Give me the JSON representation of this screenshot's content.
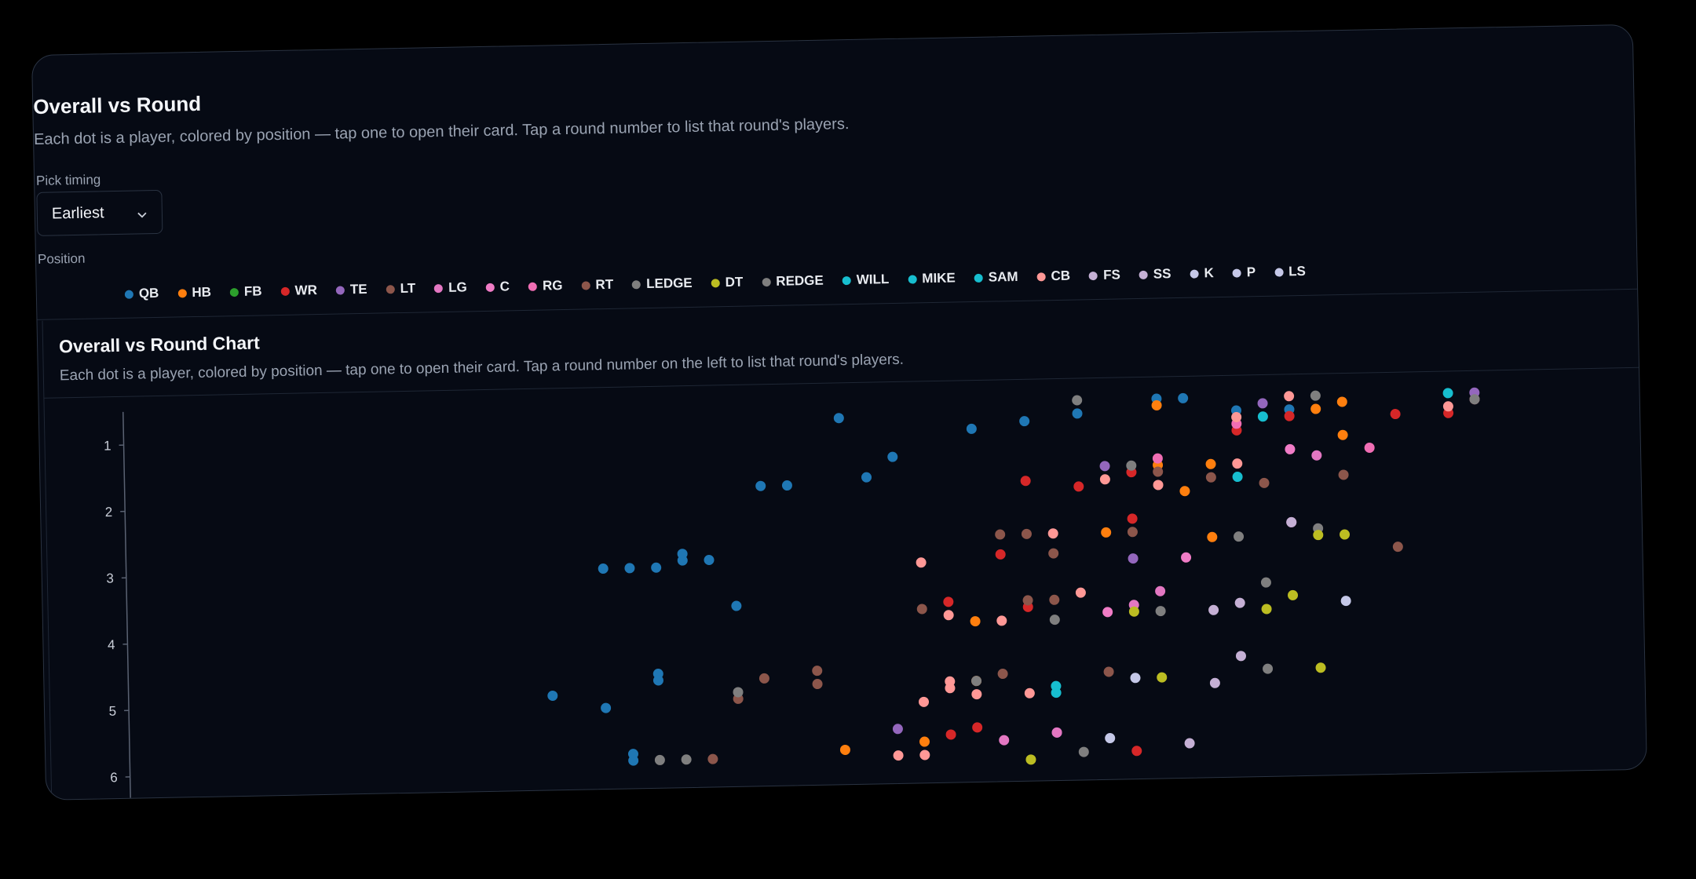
{
  "header": {
    "title": "Overall vs Round",
    "subtitle": "Each dot is a player, colored by position — tap one to open their card. Tap a round number to list that round's players."
  },
  "filters": {
    "pick_timing_label": "Pick timing",
    "pick_timing_value": "Earliest",
    "position_label": "Position"
  },
  "legend": [
    {
      "label": "QB",
      "color": "#1f77b4"
    },
    {
      "label": "HB",
      "color": "#ff7f0e"
    },
    {
      "label": "FB",
      "color": "#2ca02c"
    },
    {
      "label": "WR",
      "color": "#d62728"
    },
    {
      "label": "TE",
      "color": "#9467bd"
    },
    {
      "label": "LT",
      "color": "#8c564b"
    },
    {
      "label": "LG",
      "color": "#e377c2"
    },
    {
      "label": "C",
      "color": "#f07cc6"
    },
    {
      "label": "RG",
      "color": "#f06eb4"
    },
    {
      "label": "RT",
      "color": "#8c564b"
    },
    {
      "label": "LEDGE",
      "color": "#7f7f7f"
    },
    {
      "label": "DT",
      "color": "#bcbd22"
    },
    {
      "label": "REDGE",
      "color": "#7f7f7f"
    },
    {
      "label": "WILL",
      "color": "#17becf"
    },
    {
      "label": "MIKE",
      "color": "#17becf"
    },
    {
      "label": "SAM",
      "color": "#17becf"
    },
    {
      "label": "CB",
      "color": "#ff9896"
    },
    {
      "label": "FS",
      "color": "#c5b0d5"
    },
    {
      "label": "SS",
      "color": "#c5b0d5"
    },
    {
      "label": "K",
      "color": "#c5c8e8"
    },
    {
      "label": "P",
      "color": "#c5c8e8"
    },
    {
      "label": "LS",
      "color": "#c5c8e8"
    }
  ],
  "chart_card": {
    "title": "Overall vs Round Chart",
    "subtitle": "Each dot is a player, colored by position — tap one to open their card. Tap a round number on the left to list that round's players."
  },
  "chart_data": {
    "type": "scatter",
    "xlabel": "",
    "ylabel": "",
    "y_ticks": [
      1,
      2,
      3,
      4,
      5,
      6
    ],
    "x_range": [
      40,
      96
    ],
    "y_range": [
      0.5,
      6.2
    ],
    "y_inverted": true,
    "grid": false,
    "legend_placement": "top",
    "series": [
      {
        "position": "QB",
        "x": 76,
        "y": 0.8
      },
      {
        "position": "QB",
        "x": 74,
        "y": 0.9
      },
      {
        "position": "QB",
        "x": 72,
        "y": 1.0
      },
      {
        "position": "QB",
        "x": 67,
        "y": 0.8
      },
      {
        "position": "QB",
        "x": 68,
        "y": 1.7
      },
      {
        "position": "QB",
        "x": 69,
        "y": 1.4
      },
      {
        "position": "QB",
        "x": 65,
        "y": 1.8
      },
      {
        "position": "QB",
        "x": 64,
        "y": 1.8
      },
      {
        "position": "QB",
        "x": 62,
        "y": 2.9
      },
      {
        "position": "QB",
        "x": 61,
        "y": 2.8
      },
      {
        "position": "QB",
        "x": 61,
        "y": 2.9
      },
      {
        "position": "QB",
        "x": 60,
        "y": 3.0
      },
      {
        "position": "QB",
        "x": 59,
        "y": 3.0
      },
      {
        "position": "QB",
        "x": 58,
        "y": 3.0
      },
      {
        "position": "QB",
        "x": 63,
        "y": 3.6
      },
      {
        "position": "QB",
        "x": 60,
        "y": 4.6
      },
      {
        "position": "QB",
        "x": 60,
        "y": 4.7
      },
      {
        "position": "QB",
        "x": 56,
        "y": 4.9
      },
      {
        "position": "QB",
        "x": 58,
        "y": 5.1
      },
      {
        "position": "QB",
        "x": 59,
        "y": 5.8
      },
      {
        "position": "QB",
        "x": 59,
        "y": 5.9
      },
      {
        "position": "QB",
        "x": 79,
        "y": 0.6
      },
      {
        "position": "QB",
        "x": 80,
        "y": 0.6
      },
      {
        "position": "QB",
        "x": 82,
        "y": 0.8
      },
      {
        "position": "QB",
        "x": 84,
        "y": 0.8
      },
      {
        "position": "QB",
        "x": 91,
        "y": 0.7
      },
      {
        "position": "HB",
        "x": 79,
        "y": 0.7
      },
      {
        "position": "HB",
        "x": 85,
        "y": 0.8
      },
      {
        "position": "HB",
        "x": 86,
        "y": 0.7
      },
      {
        "position": "HB",
        "x": 79,
        "y": 1.6
      },
      {
        "position": "HB",
        "x": 81,
        "y": 1.6
      },
      {
        "position": "HB",
        "x": 86,
        "y": 1.2
      },
      {
        "position": "HB",
        "x": 80,
        "y": 2.0
      },
      {
        "position": "HB",
        "x": 77,
        "y": 2.6
      },
      {
        "position": "HB",
        "x": 81,
        "y": 2.7
      },
      {
        "position": "HB",
        "x": 72,
        "y": 3.9
      },
      {
        "position": "HB",
        "x": 72,
        "y": 4.8
      },
      {
        "position": "HB",
        "x": 70,
        "y": 5.7
      },
      {
        "position": "HB",
        "x": 67,
        "y": 5.8
      },
      {
        "position": "WR",
        "x": 74,
        "y": 1.8
      },
      {
        "position": "WR",
        "x": 76,
        "y": 1.9
      },
      {
        "position": "WR",
        "x": 78,
        "y": 1.7
      },
      {
        "position": "WR",
        "x": 82,
        "y": 1.1
      },
      {
        "position": "WR",
        "x": 84,
        "y": 0.9
      },
      {
        "position": "WR",
        "x": 88,
        "y": 0.9
      },
      {
        "position": "WR",
        "x": 90,
        "y": 0.9
      },
      {
        "position": "WR",
        "x": 91,
        "y": 0.7
      },
      {
        "position": "WR",
        "x": 73,
        "y": 2.9
      },
      {
        "position": "WR",
        "x": 78,
        "y": 2.4
      },
      {
        "position": "WR",
        "x": 71,
        "y": 3.6
      },
      {
        "position": "WR",
        "x": 74,
        "y": 3.7
      },
      {
        "position": "WR",
        "x": 72,
        "y": 5.5
      },
      {
        "position": "WR",
        "x": 71,
        "y": 5.6
      },
      {
        "position": "WR",
        "x": 78,
        "y": 5.9
      },
      {
        "position": "TE",
        "x": 77,
        "y": 1.6
      },
      {
        "position": "TE",
        "x": 83,
        "y": 0.7
      },
      {
        "position": "TE",
        "x": 91,
        "y": 0.6
      },
      {
        "position": "TE",
        "x": 78,
        "y": 3.0
      },
      {
        "position": "TE",
        "x": 69,
        "y": 5.5
      },
      {
        "position": "TE",
        "x": 75,
        "y": 5.6
      },
      {
        "position": "LT",
        "x": 79,
        "y": 1.7
      },
      {
        "position": "LT",
        "x": 81,
        "y": 1.8
      },
      {
        "position": "LT",
        "x": 83,
        "y": 1.9
      },
      {
        "position": "LT",
        "x": 86,
        "y": 1.8
      },
      {
        "position": "LT",
        "x": 73,
        "y": 2.6
      },
      {
        "position": "LT",
        "x": 74,
        "y": 2.6
      },
      {
        "position": "LT",
        "x": 75,
        "y": 2.9
      },
      {
        "position": "LT",
        "x": 78,
        "y": 2.6
      },
      {
        "position": "LT",
        "x": 88,
        "y": 2.9
      },
      {
        "position": "LT",
        "x": 70,
        "y": 3.7
      },
      {
        "position": "LT",
        "x": 74,
        "y": 3.6
      },
      {
        "position": "LT",
        "x": 75,
        "y": 3.6
      },
      {
        "position": "LT",
        "x": 66,
        "y": 4.6
      },
      {
        "position": "LT",
        "x": 66,
        "y": 4.8
      },
      {
        "position": "LT",
        "x": 64,
        "y": 4.7
      },
      {
        "position": "LT",
        "x": 63,
        "y": 5.0
      },
      {
        "position": "LT",
        "x": 73,
        "y": 4.7
      },
      {
        "position": "LT",
        "x": 77,
        "y": 4.7
      },
      {
        "position": "LT",
        "x": 62,
        "y": 5.9
      },
      {
        "position": "LG",
        "x": 85,
        "y": 1.5
      },
      {
        "position": "LG",
        "x": 84,
        "y": 2.5
      },
      {
        "position": "LG",
        "x": 79,
        "y": 3.5
      },
      {
        "position": "LG",
        "x": 78,
        "y": 3.7
      },
      {
        "position": "LG",
        "x": 75,
        "y": 5.6
      },
      {
        "position": "LG",
        "x": 73,
        "y": 5.7
      },
      {
        "position": "C",
        "x": 77,
        "y": 3.8
      },
      {
        "position": "C",
        "x": 80,
        "y": 3.0
      },
      {
        "position": "C",
        "x": 84,
        "y": 1.4
      },
      {
        "position": "RG",
        "x": 87,
        "y": 1.4
      },
      {
        "position": "RG",
        "x": 82,
        "y": 1.0
      },
      {
        "position": "RG",
        "x": 79,
        "y": 1.5
      },
      {
        "position": "LEDGE",
        "x": 76,
        "y": 0.6
      },
      {
        "position": "LEDGE",
        "x": 78,
        "y": 1.6
      },
      {
        "position": "LEDGE",
        "x": 85,
        "y": 0.6
      },
      {
        "position": "LEDGE",
        "x": 91,
        "y": 0.7
      },
      {
        "position": "LEDGE",
        "x": 85,
        "y": 2.6
      },
      {
        "position": "LEDGE",
        "x": 82,
        "y": 2.7
      },
      {
        "position": "LEDGE",
        "x": 83,
        "y": 3.4
      },
      {
        "position": "LEDGE",
        "x": 75,
        "y": 3.9
      },
      {
        "position": "LEDGE",
        "x": 79,
        "y": 3.8
      },
      {
        "position": "LEDGE",
        "x": 72,
        "y": 4.8
      },
      {
        "position": "LEDGE",
        "x": 63,
        "y": 4.9
      },
      {
        "position": "LEDGE",
        "x": 83,
        "y": 4.7
      },
      {
        "position": "LEDGE",
        "x": 60,
        "y": 5.9
      },
      {
        "position": "LEDGE",
        "x": 61,
        "y": 5.9
      },
      {
        "position": "LEDGE",
        "x": 76,
        "y": 5.9
      },
      {
        "position": "DT",
        "x": 85,
        "y": 2.7
      },
      {
        "position": "DT",
        "x": 86,
        "y": 2.7
      },
      {
        "position": "DT",
        "x": 84,
        "y": 3.6
      },
      {
        "position": "DT",
        "x": 83,
        "y": 3.8
      },
      {
        "position": "DT",
        "x": 78,
        "y": 3.8
      },
      {
        "position": "DT",
        "x": 85,
        "y": 4.7
      },
      {
        "position": "DT",
        "x": 79,
        "y": 4.8
      },
      {
        "position": "DT",
        "x": 74,
        "y": 6.0
      },
      {
        "position": "WILL",
        "x": 90,
        "y": 0.6
      },
      {
        "position": "MIKE",
        "x": 83,
        "y": 0.9
      },
      {
        "position": "SAM",
        "x": 82,
        "y": 1.8
      },
      {
        "position": "SAM",
        "x": 75,
        "y": 4.9
      },
      {
        "position": "SAM",
        "x": 75,
        "y": 5.0
      },
      {
        "position": "CB",
        "x": 84,
        "y": 0.6
      },
      {
        "position": "CB",
        "x": 90,
        "y": 0.8
      },
      {
        "position": "CB",
        "x": 82,
        "y": 0.9
      },
      {
        "position": "CB",
        "x": 77,
        "y": 1.8
      },
      {
        "position": "CB",
        "x": 79,
        "y": 1.9
      },
      {
        "position": "CB",
        "x": 82,
        "y": 1.6
      },
      {
        "position": "CB",
        "x": 75,
        "y": 2.6
      },
      {
        "position": "CB",
        "x": 70,
        "y": 3.0
      },
      {
        "position": "CB",
        "x": 73,
        "y": 3.9
      },
      {
        "position": "CB",
        "x": 71,
        "y": 3.8
      },
      {
        "position": "CB",
        "x": 76,
        "y": 3.5
      },
      {
        "position": "CB",
        "x": 71,
        "y": 4.8
      },
      {
        "position": "CB",
        "x": 71,
        "y": 4.9
      },
      {
        "position": "CB",
        "x": 70,
        "y": 5.1
      },
      {
        "position": "CB",
        "x": 72,
        "y": 5.0
      },
      {
        "position": "CB",
        "x": 74,
        "y": 5.0
      },
      {
        "position": "CB",
        "x": 70,
        "y": 5.9
      },
      {
        "position": "CB",
        "x": 69,
        "y": 5.9
      },
      {
        "position": "FS",
        "x": 84,
        "y": 2.5
      },
      {
        "position": "FS",
        "x": 81,
        "y": 3.8
      },
      {
        "position": "FS",
        "x": 82,
        "y": 3.7
      },
      {
        "position": "FS",
        "x": 81,
        "y": 4.9
      },
      {
        "position": "SS",
        "x": 82,
        "y": 4.5
      },
      {
        "position": "SS",
        "x": 80,
        "y": 5.8
      },
      {
        "position": "K",
        "x": 77,
        "y": 5.7
      },
      {
        "position": "P",
        "x": 78,
        "y": 4.8
      },
      {
        "position": "LS",
        "x": 86,
        "y": 3.7
      }
    ]
  }
}
